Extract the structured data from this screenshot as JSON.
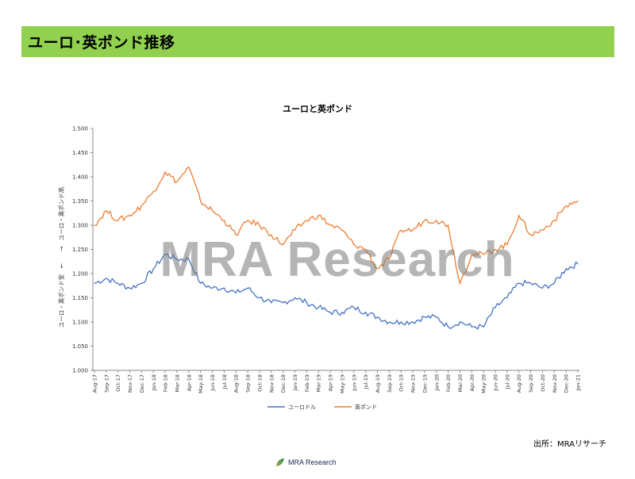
{
  "header": {
    "title": "ユーロ･英ポンド推移"
  },
  "source_note": "出所：MRAリサーチ",
  "footer": {
    "logo_text": "MRA Research"
  },
  "watermark": "MRA Research",
  "colors": {
    "header_bg": "#92d050",
    "euro": "#4472c4",
    "pound": "#ed7d31"
  },
  "chart_data": {
    "type": "line",
    "title": "ユーロと英ポンド",
    "ylabel": "ユーロ・英ポンド安　←　　→　ユーロ・英ポンド高",
    "ylim": [
      1.0,
      1.5
    ],
    "yticks": [
      "1.000",
      "1.050",
      "1.100",
      "1.150",
      "1.200",
      "1.250",
      "1.300",
      "1.350",
      "1.400",
      "1.450",
      "1.500"
    ],
    "categories": [
      "Aug-17",
      "Sep-17",
      "Oct-17",
      "Nov-17",
      "Dec-17",
      "Jan-18",
      "Feb-18",
      "Mar-18",
      "Apr-18",
      "May-18",
      "Jun-18",
      "Jul-18",
      "Aug-18",
      "Sep-18",
      "Oct-18",
      "Nov-18",
      "Dec-18",
      "Jan-19",
      "Feb-19",
      "Mar-19",
      "Apr-19",
      "May-19",
      "Jun-19",
      "Jul-19",
      "Aug-19",
      "Sep-19",
      "Oct-19",
      "Nov-19",
      "Dec-19",
      "Jan-20",
      "Feb-20",
      "Mar-20",
      "Apr-20",
      "May-20",
      "Jun-20",
      "Jul-20",
      "Aug-20",
      "Sep-20",
      "Oct-20",
      "Nov-20",
      "Dec-20",
      "Jan-21"
    ],
    "legend_position": "bottom",
    "series": [
      {
        "name": "ユーロドル",
        "color": "#4472c4",
        "values": [
          1.18,
          1.19,
          1.18,
          1.17,
          1.18,
          1.21,
          1.24,
          1.23,
          1.23,
          1.18,
          1.17,
          1.17,
          1.16,
          1.17,
          1.15,
          1.14,
          1.14,
          1.15,
          1.14,
          1.13,
          1.12,
          1.12,
          1.13,
          1.12,
          1.11,
          1.1,
          1.1,
          1.1,
          1.11,
          1.11,
          1.09,
          1.1,
          1.09,
          1.09,
          1.13,
          1.15,
          1.18,
          1.18,
          1.17,
          1.18,
          1.21,
          1.22
        ]
      },
      {
        "name": "英ポンド",
        "color": "#ed7d31",
        "values": [
          1.3,
          1.33,
          1.31,
          1.32,
          1.34,
          1.37,
          1.41,
          1.39,
          1.42,
          1.35,
          1.33,
          1.31,
          1.28,
          1.31,
          1.3,
          1.28,
          1.26,
          1.29,
          1.31,
          1.32,
          1.3,
          1.29,
          1.26,
          1.25,
          1.21,
          1.23,
          1.29,
          1.29,
          1.31,
          1.31,
          1.3,
          1.18,
          1.24,
          1.24,
          1.25,
          1.26,
          1.32,
          1.28,
          1.29,
          1.31,
          1.34,
          1.35
        ]
      }
    ]
  }
}
